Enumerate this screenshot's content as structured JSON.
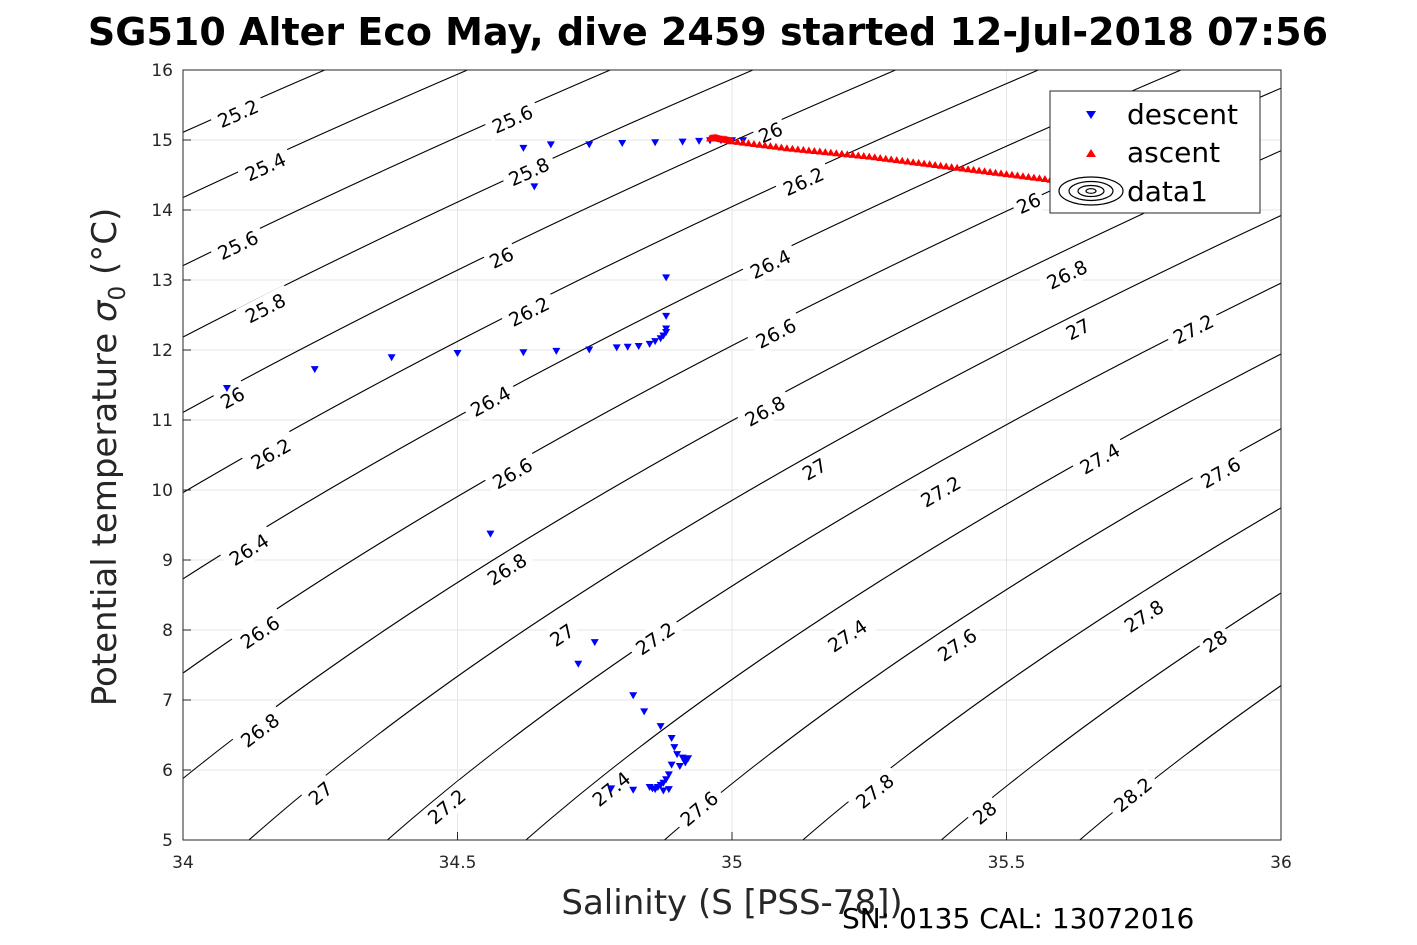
{
  "chart_data": {
    "type": "scatter",
    "title": "SG510 Alter Eco May, dive 2459 started 12-Jul-2018 07:56",
    "xlabel": "Salinity (S [PSS-78])",
    "ylabel": "Potential temperature σ_0 (°C)",
    "ylabel_main": "Potential temperature ",
    "ylabel_sigma": "σ",
    "ylabel_sub": "0",
    "ylabel_unit": " (°C)",
    "xlim": [
      34,
      36
    ],
    "ylim": [
      5,
      16
    ],
    "xticks": [
      "34",
      "34.5",
      "35",
      "35.5",
      "36"
    ],
    "yticks": [
      "5",
      "6",
      "7",
      "8",
      "9",
      "10",
      "11",
      "12",
      "13",
      "14",
      "15",
      "16"
    ],
    "grid": true,
    "legend_position": "top-right",
    "footer": "SN: 0135  CAL: 13072016",
    "colors": {
      "descent": "#0000ff",
      "ascent": "#ff0000",
      "contour": "#000000",
      "grid": "#e6e6e6"
    },
    "contours": {
      "label": "data1",
      "levels": [
        25.2,
        25.4,
        25.6,
        25.8,
        26,
        26.2,
        26.4,
        26.6,
        26.8,
        27,
        27.2,
        27.4,
        27.6,
        27.8,
        28,
        28.2
      ],
      "labels": [
        {
          "text": "25.2",
          "x": 34.1,
          "y": 15.38
        },
        {
          "text": "25.4",
          "x": 34.15,
          "y": 14.62
        },
        {
          "text": "25.6",
          "x": 34.1,
          "y": 13.5
        },
        {
          "text": "25.8",
          "x": 34.15,
          "y": 12.6
        },
        {
          "text": "26",
          "x": 34.09,
          "y": 11.32
        },
        {
          "text": "26.2",
          "x": 34.16,
          "y": 10.52
        },
        {
          "text": "26.4",
          "x": 34.12,
          "y": 9.15
        },
        {
          "text": "26.6",
          "x": 34.14,
          "y": 7.97
        },
        {
          "text": "26.8",
          "x": 34.14,
          "y": 6.57
        },
        {
          "text": "27",
          "x": 34.25,
          "y": 5.67
        },
        {
          "text": "27.2",
          "x": 34.48,
          "y": 5.48
        },
        {
          "text": "25.6",
          "x": 34.6,
          "y": 15.3
        },
        {
          "text": "25.8",
          "x": 34.63,
          "y": 14.55
        },
        {
          "text": "26",
          "x": 34.58,
          "y": 13.32
        },
        {
          "text": "26.2",
          "x": 34.63,
          "y": 12.55
        },
        {
          "text": "26.4",
          "x": 34.56,
          "y": 11.27
        },
        {
          "text": "26.6",
          "x": 34.6,
          "y": 10.24
        },
        {
          "text": "26.8",
          "x": 34.59,
          "y": 8.87
        },
        {
          "text": "27",
          "x": 34.69,
          "y": 7.93
        },
        {
          "text": "27.2",
          "x": 34.86,
          "y": 7.88
        },
        {
          "text": "27.4",
          "x": 34.78,
          "y": 5.73
        },
        {
          "text": "27.6",
          "x": 34.94,
          "y": 5.45
        },
        {
          "text": "26",
          "x": 35.07,
          "y": 15.11
        },
        {
          "text": "26.2",
          "x": 35.13,
          "y": 14.41
        },
        {
          "text": "26.4",
          "x": 35.07,
          "y": 13.23
        },
        {
          "text": "26.6",
          "x": 35.08,
          "y": 12.24
        },
        {
          "text": "26.8",
          "x": 35.06,
          "y": 11.13
        },
        {
          "text": "27",
          "x": 35.15,
          "y": 10.3
        },
        {
          "text": "27.2",
          "x": 35.38,
          "y": 9.98
        },
        {
          "text": "27.4",
          "x": 35.21,
          "y": 7.92
        },
        {
          "text": "27.6",
          "x": 35.41,
          "y": 7.79
        },
        {
          "text": "27.8",
          "x": 35.26,
          "y": 5.7
        },
        {
          "text": "28",
          "x": 35.46,
          "y": 5.39
        },
        {
          "text": "26",
          "x": 35.54,
          "y": 14.1
        },
        {
          "text": "26.8",
          "x": 35.61,
          "y": 13.08
        },
        {
          "text": "27",
          "x": 35.63,
          "y": 12.3
        },
        {
          "text": "27.2",
          "x": 35.84,
          "y": 12.3
        },
        {
          "text": "27.4",
          "x": 35.67,
          "y": 10.45
        },
        {
          "text": "27.6",
          "x": 35.89,
          "y": 10.25
        },
        {
          "text": "27.8",
          "x": 35.75,
          "y": 8.2
        },
        {
          "text": "28",
          "x": 35.88,
          "y": 7.84
        },
        {
          "text": "28.2",
          "x": 35.73,
          "y": 5.65
        }
      ]
    },
    "series": [
      {
        "name": "descent",
        "marker": "down-triangle",
        "points": [
          [
            34.08,
            11.45
          ],
          [
            34.24,
            11.72
          ],
          [
            34.38,
            11.89
          ],
          [
            34.5,
            11.95
          ],
          [
            34.62,
            11.96
          ],
          [
            34.68,
            11.98
          ],
          [
            34.74,
            12.0
          ],
          [
            34.79,
            12.03
          ],
          [
            34.81,
            12.04
          ],
          [
            34.83,
            12.05
          ],
          [
            34.85,
            12.08
          ],
          [
            34.86,
            12.12
          ],
          [
            34.87,
            12.16
          ],
          [
            34.875,
            12.2
          ],
          [
            34.88,
            12.25
          ],
          [
            34.88,
            12.3
          ],
          [
            34.88,
            12.48
          ],
          [
            34.88,
            13.03
          ],
          [
            34.62,
            14.88
          ],
          [
            34.64,
            14.33
          ],
          [
            34.67,
            14.93
          ],
          [
            34.74,
            14.93
          ],
          [
            34.8,
            14.95
          ],
          [
            34.86,
            14.96
          ],
          [
            34.91,
            14.97
          ],
          [
            34.94,
            14.98
          ],
          [
            34.96,
            14.99
          ],
          [
            34.98,
            14.99
          ],
          [
            35.0,
            14.99
          ],
          [
            35.02,
            14.99
          ],
          [
            34.56,
            9.37
          ],
          [
            34.75,
            7.82
          ],
          [
            34.72,
            7.51
          ],
          [
            34.82,
            7.06
          ],
          [
            34.84,
            6.83
          ],
          [
            34.87,
            6.62
          ],
          [
            34.89,
            6.45
          ],
          [
            34.895,
            6.32
          ],
          [
            34.9,
            6.22
          ],
          [
            34.91,
            6.17
          ],
          [
            34.915,
            6.14
          ],
          [
            34.92,
            6.16
          ],
          [
            34.915,
            6.1
          ],
          [
            34.905,
            6.05
          ],
          [
            34.89,
            6.07
          ],
          [
            34.885,
            5.93
          ],
          [
            34.88,
            5.86
          ],
          [
            34.875,
            5.81
          ],
          [
            34.87,
            5.78
          ],
          [
            34.865,
            5.75
          ],
          [
            34.86,
            5.72
          ],
          [
            34.855,
            5.73
          ],
          [
            34.85,
            5.75
          ],
          [
            34.875,
            5.7
          ],
          [
            34.885,
            5.72
          ],
          [
            34.82,
            5.71
          ],
          [
            34.78,
            5.73
          ]
        ]
      },
      {
        "name": "ascent",
        "marker": "up-triangle",
        "points": [
          [
            34.96,
            15.03
          ],
          [
            34.97,
            15.04
          ],
          [
            34.98,
            15.02
          ],
          [
            34.99,
            15.01
          ],
          [
            35.0,
            14.99
          ],
          [
            35.05,
            14.94
          ],
          [
            35.1,
            14.89
          ],
          [
            35.15,
            14.85
          ],
          [
            35.2,
            14.81
          ],
          [
            35.25,
            14.77
          ],
          [
            35.3,
            14.72
          ],
          [
            35.35,
            14.67
          ],
          [
            35.4,
            14.62
          ],
          [
            35.45,
            14.57
          ],
          [
            35.5,
            14.52
          ],
          [
            35.55,
            14.47
          ],
          [
            35.6,
            14.42
          ],
          [
            35.65,
            14.38
          ],
          [
            35.69,
            14.34
          ]
        ]
      }
    ],
    "legend": [
      {
        "label": "descent",
        "icon": "down-triangle-marker"
      },
      {
        "label": "ascent",
        "icon": "up-triangle-marker"
      },
      {
        "label": "data1",
        "icon": "contour-icon"
      }
    ]
  }
}
